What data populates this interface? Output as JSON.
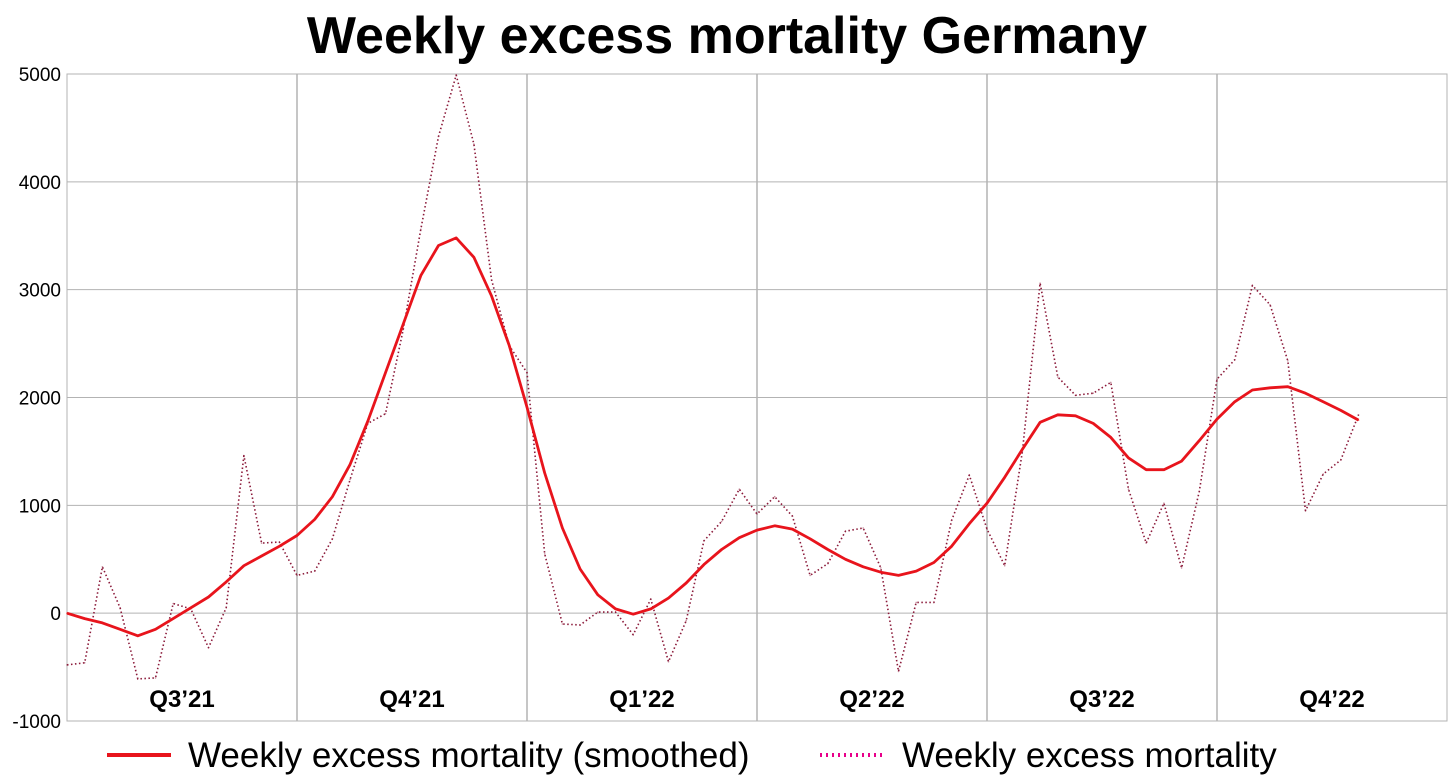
{
  "chart_data": {
    "type": "line",
    "title": "Weekly excess mortality Germany",
    "xlabel": "",
    "ylabel": "",
    "ylim": [
      -1000,
      5000
    ],
    "yticks": [
      "-1000",
      "0",
      "1000",
      "2000",
      "3000",
      "4000",
      "5000"
    ],
    "quarters": [
      "Q3’21",
      "Q4’21",
      "Q1’22",
      "Q2’22",
      "Q3’22",
      "Q4’22"
    ],
    "weeks_per_quarter": 13,
    "grid": true,
    "legend_position": "bottom",
    "series": [
      {
        "name": "Weekly excess mortality (smoothed)",
        "style": "solid",
        "color": "#e8141c",
        "values": [
          0,
          -50,
          -90,
          -150,
          -210,
          -150,
          -50,
          50,
          150,
          290,
          440,
          530,
          620,
          720,
          870,
          1080,
          1380,
          1780,
          2230,
          2680,
          3130,
          3410,
          3480,
          3300,
          2940,
          2480,
          1910,
          1300,
          790,
          410,
          170,
          40,
          -10,
          40,
          140,
          280,
          450,
          590,
          700,
          770,
          810,
          780,
          690,
          590,
          500,
          430,
          380,
          350,
          390,
          470,
          620,
          830,
          1020,
          1260,
          1520,
          1770,
          1840,
          1830,
          1760,
          1630,
          1440,
          1330,
          1330,
          1410,
          1600,
          1800,
          1960,
          2070,
          2090,
          2100,
          2040,
          1960,
          1880,
          1790
        ]
      },
      {
        "name": "Weekly excess mortality",
        "style": "dotted",
        "color": "#8b1a3a",
        "values": [
          -480,
          -460,
          430,
          50,
          -610,
          -600,
          90,
          40,
          -320,
          50,
          1460,
          650,
          660,
          350,
          390,
          690,
          1240,
          1760,
          1850,
          2630,
          3560,
          4420,
          4990,
          4350,
          3090,
          2480,
          2230,
          550,
          -100,
          -110,
          10,
          10,
          -200,
          130,
          -450,
          -70,
          670,
          850,
          1150,
          920,
          1080,
          900,
          350,
          460,
          760,
          790,
          420,
          -540,
          100,
          100,
          860,
          1280,
          780,
          440,
          1500,
          3060,
          2190,
          2020,
          2040,
          2140,
          1150,
          650,
          1020,
          420,
          1130,
          2170,
          2350,
          3040,
          2860,
          2340,
          950,
          1290,
          1420,
          1840
        ]
      }
    ]
  }
}
